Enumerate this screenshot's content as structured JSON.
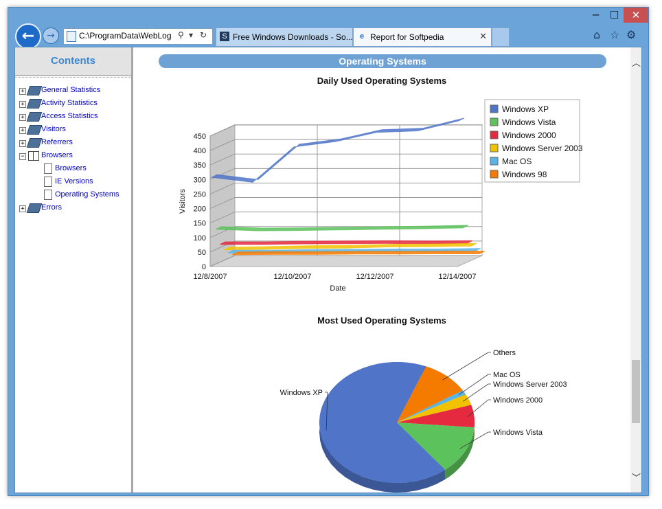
{
  "window": {
    "minimize": "─",
    "maximize": "☐",
    "close": "✕"
  },
  "nav": {
    "back_icon": "arrow-left",
    "forward_icon": "arrow-right"
  },
  "address": {
    "value": "C:\\ProgramData\\WebLog",
    "search_glyph": "⚲",
    "dropdown_glyph": "▾",
    "refresh_glyph": "↻"
  },
  "tabs": [
    {
      "icon": "S",
      "label": "Free Windows Downloads - So..."
    },
    {
      "icon": "e",
      "label": "Report for Softpedia",
      "close": "✕"
    }
  ],
  "toolbar": {
    "home_icon": "⌂",
    "favorites_icon": "☆",
    "settings_icon": "⚙"
  },
  "sidebar": {
    "title": "Contents",
    "items": [
      {
        "label": "General Statistics",
        "expander": "+"
      },
      {
        "label": "Activity Statistics",
        "expander": "+"
      },
      {
        "label": "Access Statistics",
        "expander": "+"
      },
      {
        "label": "Visitors",
        "expander": "+"
      },
      {
        "label": "Referrers",
        "expander": "+"
      },
      {
        "label": "Browsers",
        "expander": "−"
      },
      {
        "label": "Browsers",
        "child": true
      },
      {
        "label": "IE Versions",
        "child": true
      },
      {
        "label": "Operating Systems",
        "child": true
      },
      {
        "label": "Errors",
        "expander": "+"
      }
    ]
  },
  "section_title": "Operating Systems",
  "colors": {
    "Windows XP": "#4f74c8",
    "Windows Vista": "#5cc25c",
    "Windows 2000": "#e5293f",
    "Windows Server 2003": "#f2c200",
    "Mac OS": "#59b4e8",
    "Windows 98": "#f47a00"
  },
  "chart_data": [
    {
      "type": "line",
      "title": "Daily Used Operating Systems",
      "xlabel": "Date",
      "ylabel": "Visitors",
      "x": [
        "12/8/2007",
        "12/9/2007",
        "12/10/2007",
        "12/11/2007",
        "12/12/2007",
        "12/13/2007",
        "12/14/2007"
      ],
      "x_tick_labels": [
        "12/8/2007",
        "12/10/2007",
        "12/12/2007",
        "12/14/2007"
      ],
      "y_ticks": [
        0,
        50,
        100,
        150,
        200,
        250,
        300,
        350,
        400,
        450
      ],
      "ylim": [
        0,
        450
      ],
      "grid": true,
      "legend": "right",
      "series": [
        {
          "name": "Windows XP",
          "values": [
            305,
            288,
            410,
            428,
            460,
            465,
            500
          ]
        },
        {
          "name": "Windows Vista",
          "values": [
            120,
            115,
            116,
            118,
            120,
            122,
            125
          ]
        },
        {
          "name": "Windows 2000",
          "values": [
            62,
            62,
            64,
            65,
            66,
            65,
            66
          ]
        },
        {
          "name": "Windows Server 2003",
          "values": [
            38,
            40,
            43,
            44,
            48,
            49,
            51
          ]
        },
        {
          "name": "Mac OS",
          "values": [
            22,
            22,
            24,
            25,
            26,
            26,
            28
          ]
        },
        {
          "name": "Windows 98",
          "values": [
            10,
            11,
            11,
            12,
            12,
            13,
            13
          ]
        }
      ]
    },
    {
      "type": "pie",
      "title": "Most Used Operating Systems",
      "slices": [
        {
          "label": "Others",
          "value": 10
        },
        {
          "label": "Mac OS",
          "value": 1.2
        },
        {
          "label": "Windows Server 2003",
          "value": 3
        },
        {
          "label": "Windows 2000",
          "value": 6
        },
        {
          "label": "Windows Vista",
          "value": 13
        },
        {
          "label": "Windows XP",
          "value": 66.8
        }
      ],
      "slice_colors": {
        "Others": "#f47a00",
        "Mac OS": "#59b4e8",
        "Windows Server 2003": "#f2c200",
        "Windows 2000": "#e5293f",
        "Windows Vista": "#5cc25c",
        "Windows XP": "#4f74c8"
      }
    }
  ],
  "scrollbar": {
    "up": "︿",
    "down": "﹀"
  }
}
